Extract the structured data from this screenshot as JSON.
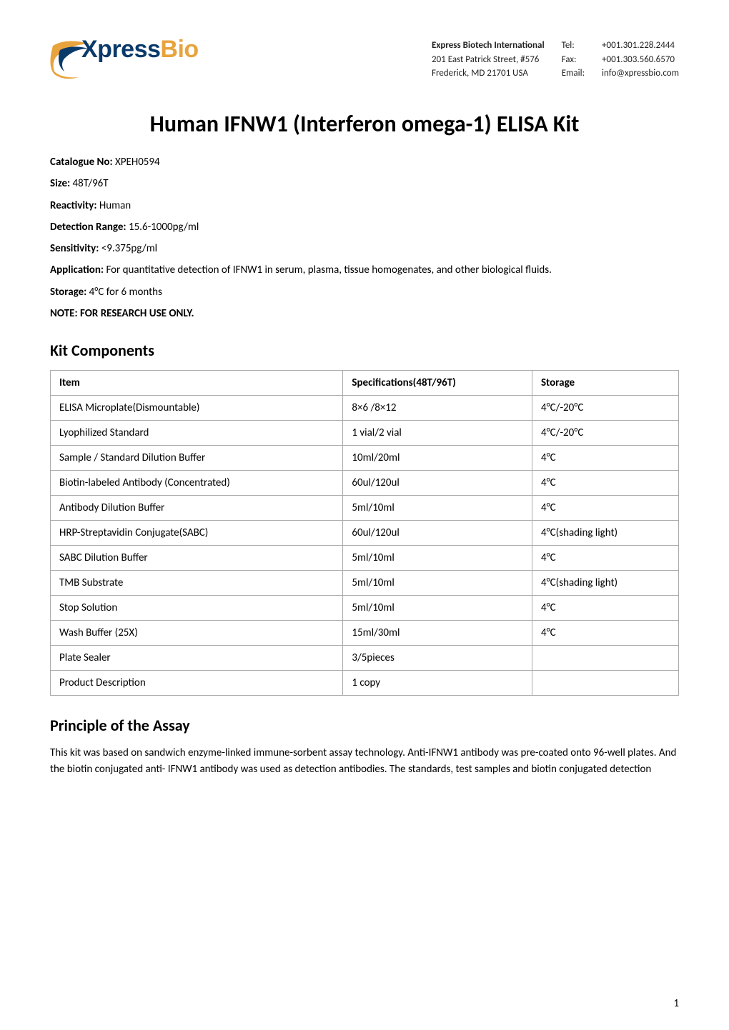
{
  "logo": {
    "text_a": "Xpress",
    "text_b": "Bio",
    "color_a": "#0a3a6a",
    "color_b": "#e8a33d",
    "swoosh_outer": "#e8a33d",
    "swoosh_inner": "#0a3a6a"
  },
  "contact": {
    "company": "Express Biotech International",
    "addr1": "201 East Patrick Street, #576",
    "addr2": "Frederick, MD 21701 USA",
    "tel_label": "Tel:",
    "fax_label": "Fax:",
    "email_label": "Email:",
    "tel": "+001.301.228.2444",
    "fax": "+001.303.560.6570",
    "email": "info@xpressbio.com"
  },
  "title": "Human IFNW1 (Interferon omega-1) ELISA Kit",
  "meta": {
    "catalogue_label": "Catalogue No: ",
    "catalogue": "XPEH0594",
    "size_label": "Size: ",
    "size": "48T/96T",
    "reactivity_label": "Reactivity: ",
    "reactivity": "Human",
    "range_label": "Detection Range: ",
    "range": "15.6-1000pg/ml",
    "sensitivity_label": "Sensitivity: ",
    "sensitivity": "<9.375pg/ml",
    "application_label": "Application: ",
    "application": "For quantitative detection of IFNW1 in serum, plasma, tissue homogenates, and other biological fluids.",
    "storage_label": "Storage: ",
    "storage": "4°C for 6 months",
    "note_label": "NOTE: FOR RESEARCH USE ONLY."
  },
  "kit_heading": "Kit Components",
  "table": {
    "columns": [
      "Item",
      "Specifications(48T/96T)",
      "Storage"
    ],
    "rows": [
      [
        "ELISA Microplate(Dismountable)",
        "8×6 /8×12",
        "4°C/-20°C"
      ],
      [
        "Lyophilized Standard",
        "1 vial/2 vial",
        "4°C/-20°C"
      ],
      [
        "Sample / Standard Dilution Buffer",
        "10ml/20ml",
        "4°C"
      ],
      [
        "Biotin-labeled Antibody (Concentrated)",
        "60ul/120ul",
        "4°C"
      ],
      [
        "Antibody Dilution Buffer",
        "5ml/10ml",
        "4°C"
      ],
      [
        "HRP-Streptavidin Conjugate(SABC)",
        "60ul/120ul",
        "4°C(shading light)"
      ],
      [
        "SABC Dilution Buffer",
        "5ml/10ml",
        "4°C"
      ],
      [
        "TMB Substrate",
        "5ml/10ml",
        "4°C(shading light)"
      ],
      [
        "Stop Solution",
        "5ml/10ml",
        "4°C"
      ],
      [
        "Wash Buffer (25X)",
        "15ml/30ml",
        "4°C"
      ],
      [
        "Plate Sealer",
        "3/5pieces",
        ""
      ],
      [
        "Product Description",
        "1 copy",
        ""
      ]
    ],
    "border_color": "#aaaaaa",
    "header_fontweight": "bold",
    "cell_fontsize": 15
  },
  "principle_heading": "Principle of the Assay",
  "principle_text": "This kit was based on sandwich enzyme-linked immune-sorbent assay technology. Anti-IFNW1 antibody was pre-coated onto 96-well plates. And the biotin conjugated anti- IFNW1 antibody was used as detection antibodies. The standards, test samples and biotin conjugated detection",
  "page_number": "1",
  "colors": {
    "text": "#000000",
    "background": "#ffffff"
  }
}
